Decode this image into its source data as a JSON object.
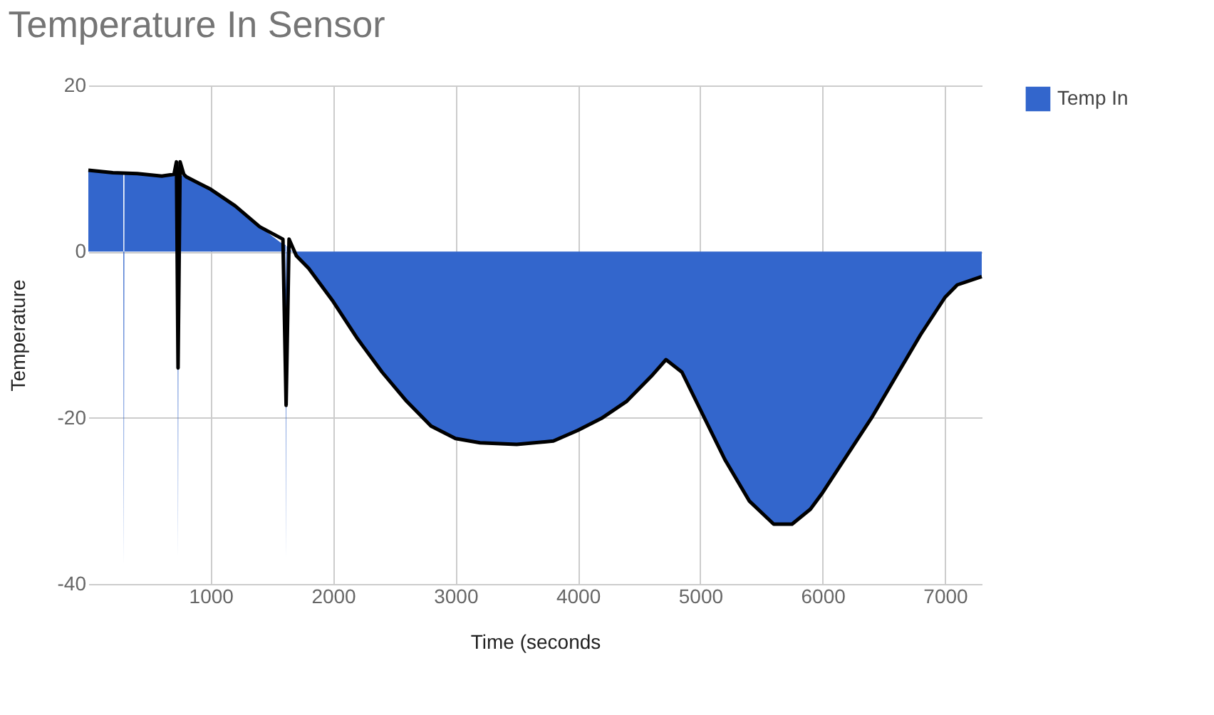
{
  "chart_data": {
    "type": "area",
    "title": "Temperature In Sensor",
    "xlabel": "Time (seconds",
    "ylabel": "Temperature",
    "xlim": [
      0,
      7300
    ],
    "xticks": [
      1000,
      2000,
      3000,
      4000,
      5000,
      6000,
      7000
    ],
    "ylim": [
      -40,
      20
    ],
    "yticks": [
      -40,
      -20,
      0,
      20
    ],
    "grid": true,
    "legend": "top right",
    "series": [
      {
        "name": "Temp In",
        "color": "#3366cc",
        "x": [
          0,
          200,
          285,
          290,
          295,
          600,
          728,
          733,
          738,
          800,
          1000,
          1200,
          1400,
          1580,
          1612,
          1616,
          1620,
          1700,
          1800,
          2000,
          2200,
          2400,
          2600,
          2800,
          3000,
          3200,
          3500,
          3800,
          4000,
          4200,
          4400,
          4600,
          4720,
          4850,
          5000,
          5200,
          5400,
          5600,
          5750,
          5900,
          6000,
          6200,
          6400,
          6600,
          6800,
          7000,
          7100,
          7300
        ],
        "values": [
          9.8,
          9.5,
          9.4,
          -37.5,
          9.4,
          9.1,
          9.3,
          -36.7,
          9.3,
          9.0,
          7.5,
          5.5,
          3,
          1,
          0.8,
          -37,
          0.7,
          -0.5,
          -2,
          -6,
          -10.5,
          -14.5,
          -18,
          -21,
          -22.5,
          -23,
          -23.2,
          -22.8,
          -21.5,
          -20,
          -18,
          -15,
          -13,
          -14.5,
          -19,
          -25,
          -30,
          -32.8,
          -32.8,
          -31,
          -29,
          -24.5,
          -20,
          -15,
          -10,
          -5.5,
          -4,
          -3
        ]
      },
      {
        "type": "line",
        "color": "#000000",
        "x": [
          0,
          200,
          400,
          600,
          700,
          720,
          733,
          750,
          780,
          800,
          1000,
          1200,
          1400,
          1590,
          1616,
          1640,
          1700,
          1800,
          2000,
          2200,
          2400,
          2600,
          2800,
          3000,
          3200,
          3500,
          3800,
          4000,
          4200,
          4400,
          4600,
          4720,
          4850,
          5000,
          5200,
          5400,
          5600,
          5750,
          5900,
          6000,
          6200,
          6400,
          6600,
          6800,
          7000,
          7100,
          7300
        ],
        "values": [
          9.8,
          9.5,
          9.4,
          9.1,
          9.3,
          10.8,
          -14,
          10.8,
          9.3,
          9.0,
          7.5,
          5.5,
          3,
          1.5,
          -18.5,
          1.5,
          -0.5,
          -2,
          -6,
          -10.5,
          -14.5,
          -18,
          -21,
          -22.5,
          -23,
          -23.2,
          -22.8,
          -21.5,
          -20,
          -18,
          -15,
          -13,
          -14.5,
          -19,
          -25,
          -30,
          -32.8,
          -32.8,
          -31,
          -29,
          -24.5,
          -20,
          -15,
          -10,
          -5.5,
          -4,
          -3
        ]
      }
    ]
  }
}
